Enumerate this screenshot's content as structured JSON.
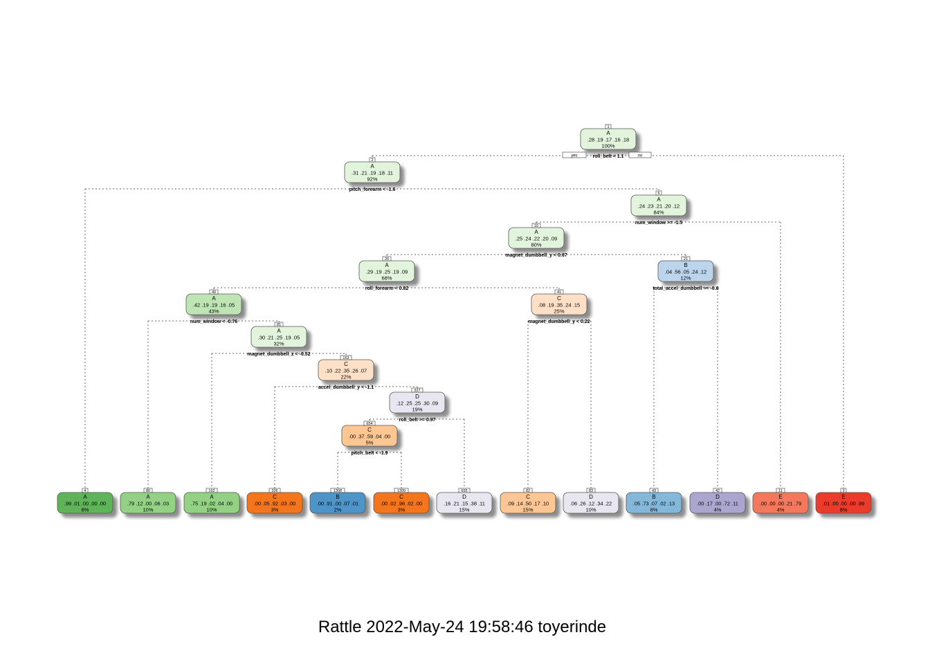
{
  "caption": "Rattle 2022-May-24 19:58:46 toyerinde",
  "branch_labels": {
    "yes": "yes",
    "no": "no"
  },
  "nodes": [
    {
      "id": "1",
      "class": "A",
      "probs": ".28  .19  .17  .16  .18",
      "pct": "100%",
      "split": "roll_belt < 1.1",
      "color": "#e2f4dc"
    },
    {
      "id": "2",
      "class": "A",
      "probs": ".31  .21  .19  .18  .11",
      "pct": "92%",
      "split": "pitch_forearm < -1.6",
      "color": "#e2f4dc"
    },
    {
      "id": "5",
      "class": "A",
      "probs": ".24  .23  .21  .20  .12",
      "pct": "84%",
      "split": "num_window >= -1.5",
      "color": "#e2f4dc"
    },
    {
      "id": "10",
      "class": "A",
      "probs": ".25  .24  .22  .20  .09",
      "pct": "80%",
      "split": "magnet_dumbbell_y < 0.67",
      "color": "#e2f4dc"
    },
    {
      "id": "20",
      "class": "A",
      "probs": ".29  .19  .25  .19  .09",
      "pct": "68%",
      "split": "roll_forearm < 0.82",
      "color": "#e2f4dc"
    },
    {
      "id": "21",
      "class": "B",
      "probs": ".04  .56  .05  .24  .12",
      "pct": "12%",
      "split": "total_accel_dumbbell >= -0.8",
      "color": "#bcd4ec"
    },
    {
      "id": "40",
      "class": "A",
      "probs": ".42  .19  .19  .16  .05",
      "pct": "43%",
      "split": "num_window < -0.76",
      "color": "#bfe5b5"
    },
    {
      "id": "41",
      "class": "C",
      "probs": ".08  .19  .35  .24  .15",
      "pct": "25%",
      "split": "magnet_dumbbell_y < 0.22",
      "color": "#fde0c6"
    },
    {
      "id": "81",
      "class": "A",
      "probs": ".30  .21  .25  .19  .05",
      "pct": "32%",
      "split": "magnet_dumbbell_z < -0.52",
      "color": "#e2f4dc"
    },
    {
      "id": "163",
      "class": "C",
      "probs": ".10  .22  .35  .26  .07",
      "pct": "22%",
      "split": "accel_dumbbell_y < -1.1",
      "color": "#fde0c6"
    },
    {
      "id": "327",
      "class": "D",
      "probs": ".12  .25  .25  .30  .09",
      "pct": "19%",
      "split": "roll_belt >= 0.97",
      "color": "#e8e7f1"
    },
    {
      "id": "654",
      "class": "C",
      "probs": ".00  .37  .59  .04  .00",
      "pct": "5%",
      "split": "pitch_belt < -1.9",
      "color": "#fdc692"
    },
    {
      "id": "4",
      "class": "A",
      "probs": ".99  .01  .00  .00  .00",
      "pct": "8%",
      "split": "",
      "color": "#5fb358"
    },
    {
      "id": "80",
      "class": "A",
      "probs": ".79  .12  .00  .06  .03",
      "pct": "10%",
      "split": "",
      "color": "#93d185"
    },
    {
      "id": "162",
      "class": "A",
      "probs": ".75  .19  .02  .04  .00",
      "pct": "10%",
      "split": "",
      "color": "#93d185"
    },
    {
      "id": "326",
      "class": "C",
      "probs": ".00  .05  .92  .03  .00",
      "pct": "3%",
      "split": "",
      "color": "#f5751e"
    },
    {
      "id": "1308",
      "class": "B",
      "probs": ".00  .91  .00  .07  .01",
      "pct": "2%",
      "split": "",
      "color": "#4e94c8"
    },
    {
      "id": "1309",
      "class": "C",
      "probs": ".00  .02  .96  .02  .00",
      "pct": "3%",
      "split": "",
      "color": "#f5751e"
    },
    {
      "id": "655",
      "class": "D",
      "probs": ".16  .21  .15  .38  .11",
      "pct": "15%",
      "split": "",
      "color": "#e8e7f1"
    },
    {
      "id": "82",
      "class": "C",
      "probs": ".09  .14  .50  .17  .10",
      "pct": "15%",
      "split": "",
      "color": "#fdc692"
    },
    {
      "id": "83",
      "class": "D",
      "probs": ".06  .26  .12  .34  .22",
      "pct": "10%",
      "split": "",
      "color": "#e8e7f1"
    },
    {
      "id": "43",
      "class": "B",
      "probs": ".05  .73  .07  .02  .13",
      "pct": "8%",
      "split": "",
      "color": "#84b8da"
    },
    {
      "id": "42",
      "class": "D",
      "probs": ".00  .17  .00  .72  .11",
      "pct": "4%",
      "split": "",
      "color": "#aba6d0"
    },
    {
      "id": "11",
      "class": "E",
      "probs": ".00  .00  .00  .21  .79",
      "pct": "4%",
      "split": "",
      "color": "#f4785c"
    },
    {
      "id": "3",
      "class": "E",
      "probs": ".01  .00  .00  .00  .99",
      "pct": "8%",
      "split": "",
      "color": "#ec3b2c"
    }
  ],
  "edges": [
    [
      "1",
      "2"
    ],
    [
      "1",
      "3"
    ],
    [
      "2",
      "4"
    ],
    [
      "2",
      "5"
    ],
    [
      "5",
      "10"
    ],
    [
      "5",
      "11"
    ],
    [
      "10",
      "20"
    ],
    [
      "10",
      "21"
    ],
    [
      "20",
      "40"
    ],
    [
      "20",
      "41"
    ],
    [
      "21",
      "43"
    ],
    [
      "21",
      "42"
    ],
    [
      "40",
      "80"
    ],
    [
      "40",
      "81"
    ],
    [
      "41",
      "82"
    ],
    [
      "41",
      "83"
    ],
    [
      "81",
      "162"
    ],
    [
      "81",
      "163"
    ],
    [
      "163",
      "326"
    ],
    [
      "163",
      "327"
    ],
    [
      "327",
      "654"
    ],
    [
      "327",
      "655"
    ],
    [
      "654",
      "1308"
    ],
    [
      "654",
      "1309"
    ]
  ]
}
